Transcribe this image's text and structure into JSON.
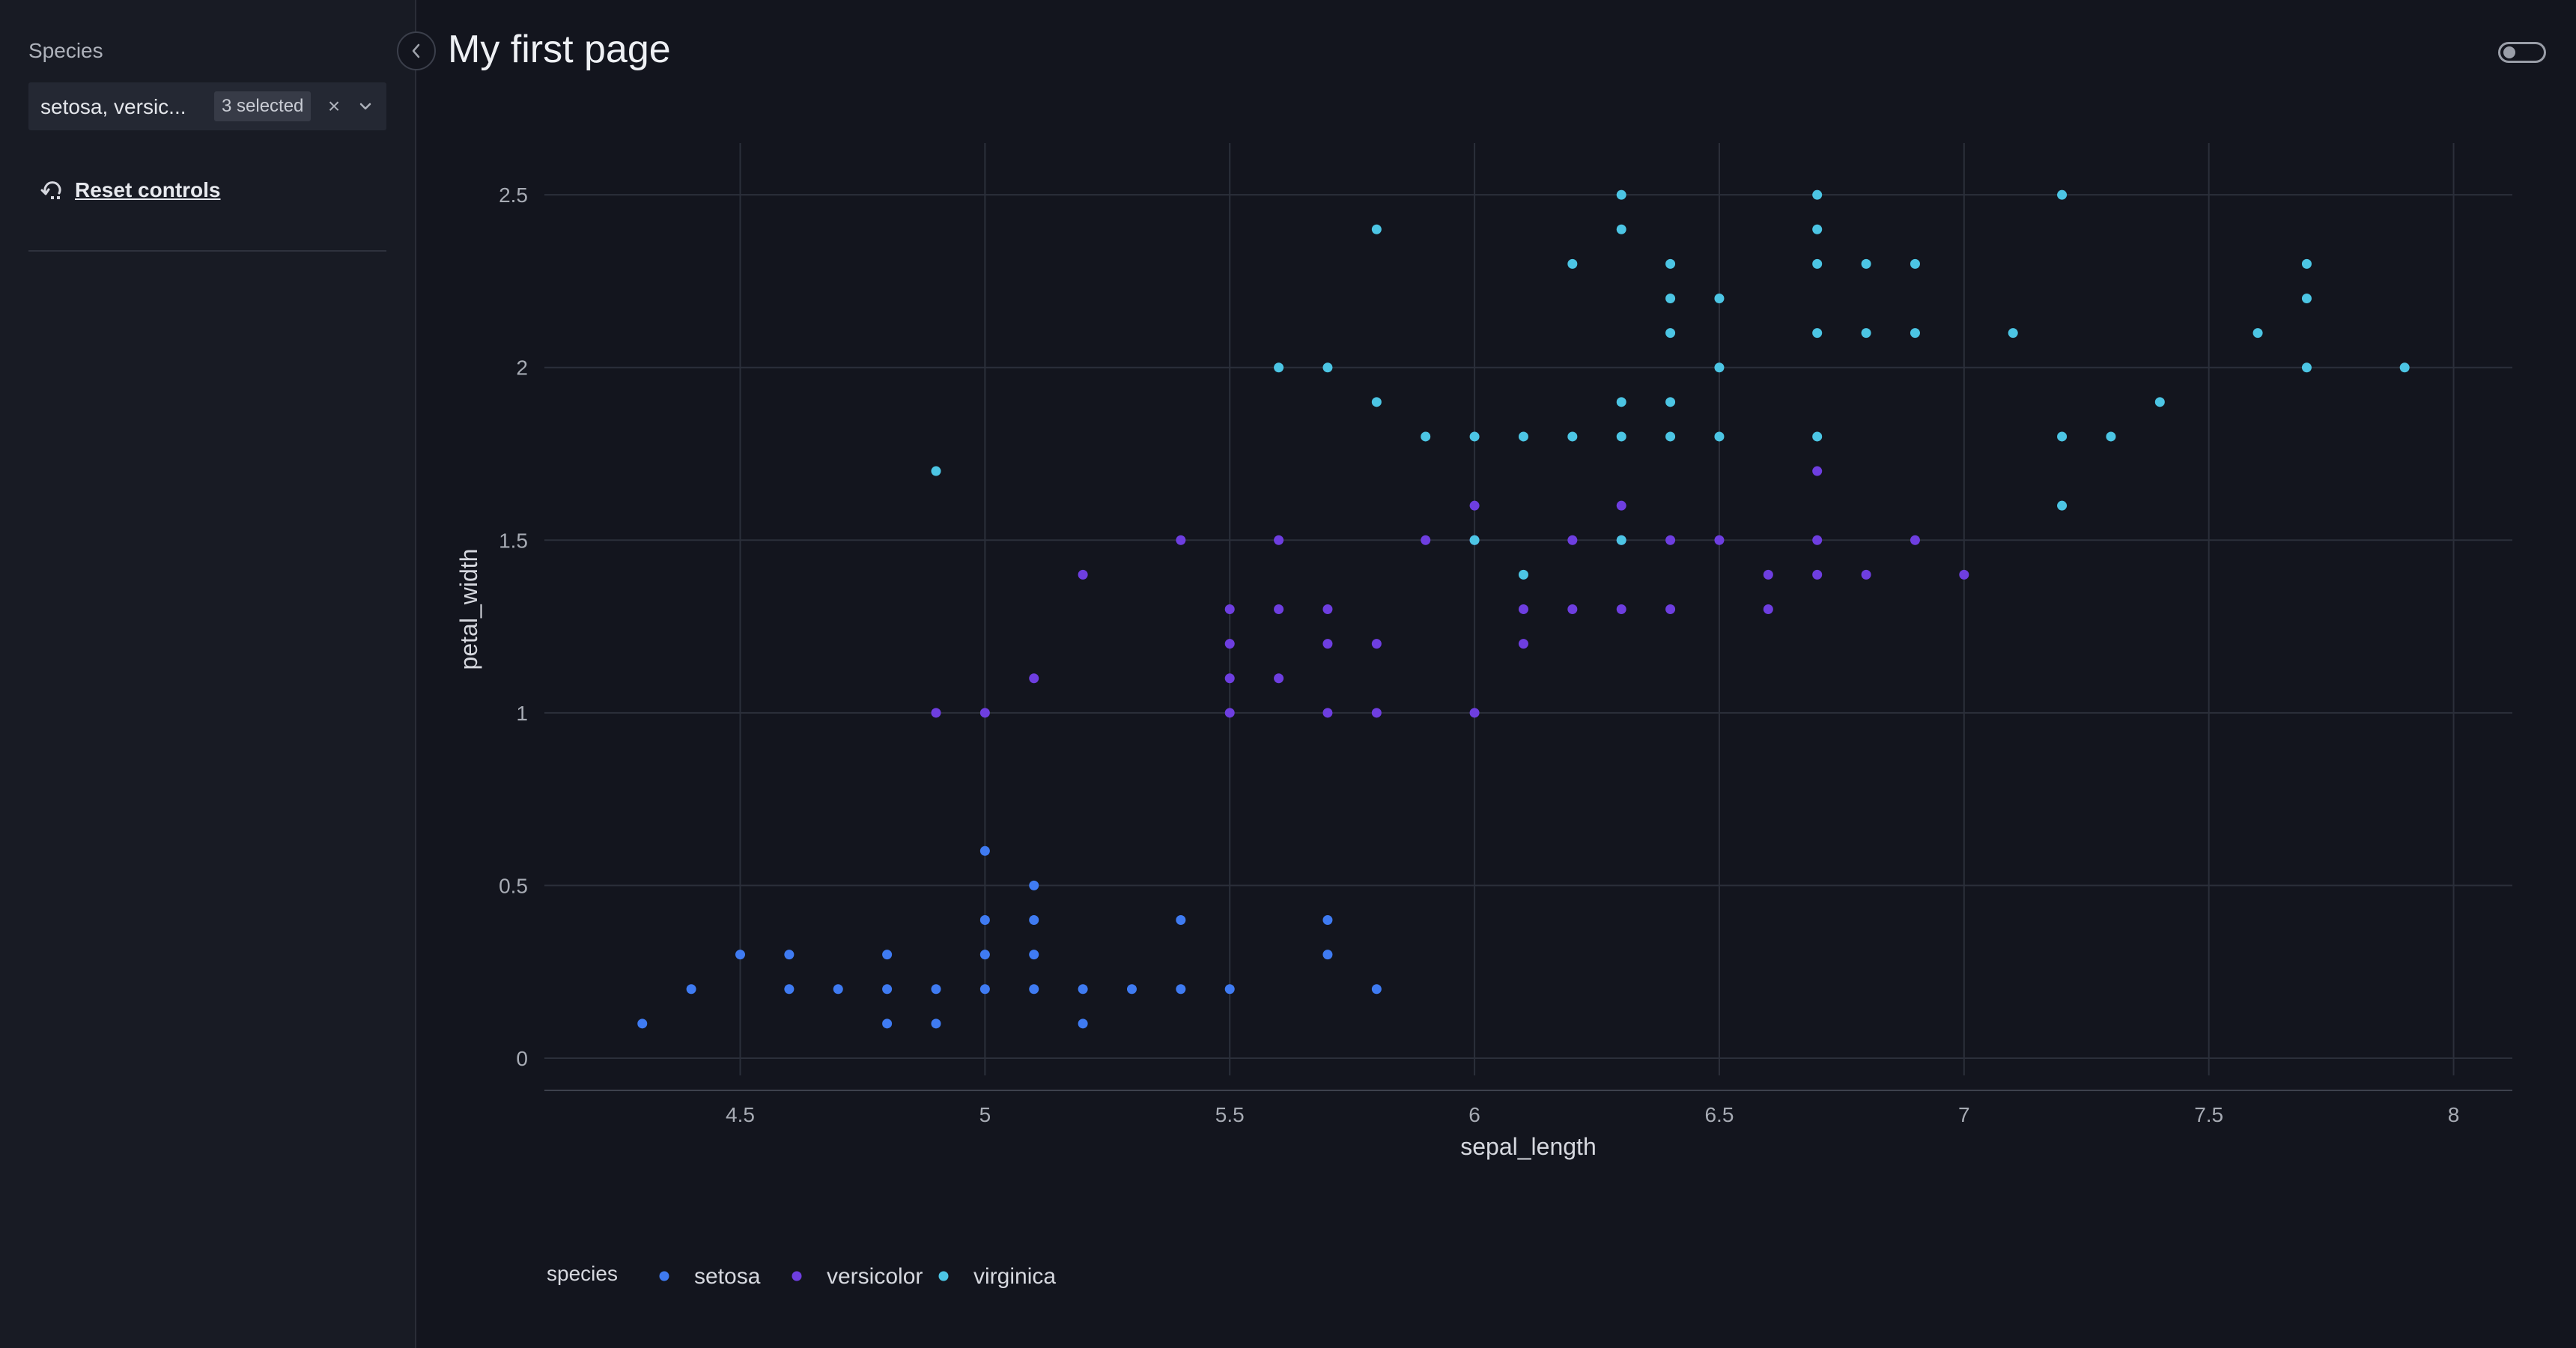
{
  "sidebar": {
    "filter_label": "Species",
    "multiselect": {
      "value": "setosa, versic...",
      "badge": "3 selected",
      "clear": "×"
    },
    "reset_label": "Reset controls"
  },
  "header": {
    "title": "My first page"
  },
  "icons": {
    "collapse": "chevron-left-icon",
    "reset": "reset-icon",
    "dropdown": "chevron-down-icon",
    "theme": "theme-toggle"
  },
  "colors": {
    "setosa": "#3f7bf2",
    "versicolor": "#6e3ee0",
    "virginica": "#4cc5e4",
    "background": "#13151e",
    "sidebar": "#181b24"
  },
  "chart_data": {
    "type": "scatter",
    "xlabel": "sepal_length",
    "ylabel": "petal_width",
    "xlim": [
      4.1,
      8.12
    ],
    "ylim": [
      -0.05,
      2.65
    ],
    "xticks": [
      "4.5",
      "5",
      "5.5",
      "6",
      "6.5",
      "7",
      "7.5",
      "8"
    ],
    "yticks": [
      "0",
      "0.5",
      "1",
      "1.5",
      "2",
      "2.5"
    ],
    "grid": true,
    "legend": {
      "title": "species",
      "placement": "bottom-left"
    },
    "series": [
      {
        "name": "setosa",
        "points": [
          [
            4.3,
            0.1
          ],
          [
            4.4,
            0.2
          ],
          [
            4.5,
            0.3
          ],
          [
            4.6,
            0.3
          ],
          [
            4.6,
            0.2
          ],
          [
            4.7,
            0.2
          ],
          [
            4.8,
            0.3
          ],
          [
            4.8,
            0.2
          ],
          [
            4.8,
            0.1
          ],
          [
            4.9,
            0.2
          ],
          [
            4.9,
            0.1
          ],
          [
            5.0,
            0.6
          ],
          [
            5.0,
            0.4
          ],
          [
            5.0,
            0.3
          ],
          [
            5.0,
            0.2
          ],
          [
            5.1,
            0.5
          ],
          [
            5.1,
            0.4
          ],
          [
            5.1,
            0.3
          ],
          [
            5.1,
            0.2
          ],
          [
            5.2,
            0.2
          ],
          [
            5.2,
            0.1
          ],
          [
            5.3,
            0.2
          ],
          [
            5.4,
            0.4
          ],
          [
            5.4,
            0.2
          ],
          [
            5.5,
            0.2
          ],
          [
            5.7,
            0.4
          ],
          [
            5.7,
            0.3
          ],
          [
            5.8,
            0.2
          ]
        ]
      },
      {
        "name": "versicolor",
        "points": [
          [
            4.9,
            1.0
          ],
          [
            5.0,
            1.0
          ],
          [
            5.1,
            1.1
          ],
          [
            5.2,
            1.4
          ],
          [
            5.4,
            1.5
          ],
          [
            5.5,
            1.3
          ],
          [
            5.5,
            1.2
          ],
          [
            5.5,
            1.1
          ],
          [
            5.5,
            1.0
          ],
          [
            5.6,
            1.5
          ],
          [
            5.6,
            1.3
          ],
          [
            5.6,
            1.1
          ],
          [
            5.7,
            1.3
          ],
          [
            5.7,
            1.2
          ],
          [
            5.7,
            1.0
          ],
          [
            5.8,
            1.2
          ],
          [
            5.8,
            1.0
          ],
          [
            5.9,
            1.5
          ],
          [
            6.0,
            1.6
          ],
          [
            6.0,
            1.5
          ],
          [
            6.0,
            1.0
          ],
          [
            6.1,
            1.3
          ],
          [
            6.1,
            1.2
          ],
          [
            6.2,
            1.5
          ],
          [
            6.2,
            1.3
          ],
          [
            6.3,
            1.6
          ],
          [
            6.3,
            1.5
          ],
          [
            6.3,
            1.3
          ],
          [
            6.4,
            1.5
          ],
          [
            6.4,
            1.3
          ],
          [
            6.5,
            1.5
          ],
          [
            6.6,
            1.4
          ],
          [
            6.6,
            1.3
          ],
          [
            6.7,
            1.7
          ],
          [
            6.7,
            1.5
          ],
          [
            6.7,
            1.4
          ],
          [
            6.8,
            1.4
          ],
          [
            6.9,
            1.5
          ],
          [
            7.0,
            1.4
          ]
        ]
      },
      {
        "name": "virginica",
        "points": [
          [
            4.9,
            1.7
          ],
          [
            5.6,
            2.0
          ],
          [
            5.7,
            2.0
          ],
          [
            5.8,
            2.4
          ],
          [
            5.8,
            1.9
          ],
          [
            5.9,
            1.8
          ],
          [
            6.0,
            1.8
          ],
          [
            6.0,
            1.5
          ],
          [
            6.1,
            1.8
          ],
          [
            6.1,
            1.4
          ],
          [
            6.2,
            2.3
          ],
          [
            6.2,
            1.8
          ],
          [
            6.3,
            2.5
          ],
          [
            6.3,
            2.4
          ],
          [
            6.3,
            1.9
          ],
          [
            6.3,
            1.8
          ],
          [
            6.3,
            1.5
          ],
          [
            6.4,
            2.3
          ],
          [
            6.4,
            2.2
          ],
          [
            6.4,
            2.1
          ],
          [
            6.4,
            1.9
          ],
          [
            6.4,
            1.8
          ],
          [
            6.5,
            2.2
          ],
          [
            6.5,
            2.0
          ],
          [
            6.5,
            1.8
          ],
          [
            6.7,
            2.5
          ],
          [
            6.7,
            2.4
          ],
          [
            6.7,
            2.3
          ],
          [
            6.7,
            2.1
          ],
          [
            6.7,
            1.8
          ],
          [
            6.8,
            2.3
          ],
          [
            6.8,
            2.1
          ],
          [
            6.9,
            2.3
          ],
          [
            6.9,
            2.1
          ],
          [
            7.1,
            2.1
          ],
          [
            7.2,
            2.5
          ],
          [
            7.2,
            1.8
          ],
          [
            7.2,
            1.6
          ],
          [
            7.3,
            1.8
          ],
          [
            7.4,
            1.9
          ],
          [
            7.6,
            2.1
          ],
          [
            7.7,
            2.3
          ],
          [
            7.7,
            2.2
          ],
          [
            7.7,
            2.0
          ],
          [
            7.9,
            2.0
          ]
        ]
      }
    ]
  }
}
